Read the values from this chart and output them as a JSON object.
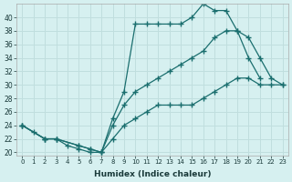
{
  "xlabel": "Humidex (Indice chaleur)",
  "bg_color": "#d6f0f0",
  "grid_color": "#c0dede",
  "line_color": "#1a6e6e",
  "xlim": [
    -0.5,
    23.5
  ],
  "ylim": [
    19.5,
    42
  ],
  "yticks": [
    20,
    22,
    24,
    26,
    28,
    30,
    32,
    34,
    36,
    38,
    40
  ],
  "xticks": [
    0,
    1,
    2,
    3,
    4,
    5,
    6,
    7,
    8,
    9,
    10,
    11,
    12,
    13,
    14,
    15,
    16,
    17,
    18,
    19,
    20,
    21,
    22,
    23
  ],
  "line1_x": [
    0,
    1,
    2,
    3,
    4,
    5,
    6,
    7,
    8,
    9,
    10,
    11,
    12,
    13,
    14,
    15,
    16,
    17,
    18,
    19,
    20,
    21
  ],
  "line1_y": [
    24,
    23,
    22,
    22,
    21,
    20.5,
    20,
    20,
    25,
    29,
    39,
    39,
    39,
    39,
    39,
    40,
    42,
    41,
    41,
    38,
    34,
    31
  ],
  "line2_x": [
    0,
    2,
    3,
    5,
    6,
    7,
    8,
    9,
    10,
    11,
    12,
    13,
    14,
    15,
    16,
    17,
    18,
    19,
    20,
    21,
    22,
    23
  ],
  "line2_y": [
    24,
    22,
    22,
    21,
    20.5,
    20,
    24,
    27,
    29,
    30,
    31,
    32,
    33,
    34,
    35,
    37,
    38,
    38,
    37,
    34,
    31,
    30
  ],
  "line3_x": [
    0,
    2,
    3,
    5,
    6,
    7,
    8,
    9,
    10,
    11,
    12,
    13,
    14,
    15,
    16,
    17,
    18,
    19,
    20,
    21,
    22,
    23
  ],
  "line3_y": [
    24,
    22,
    22,
    21,
    20.5,
    20,
    22,
    24,
    25,
    26,
    27,
    27,
    27,
    27,
    28,
    29,
    30,
    31,
    31,
    30,
    30,
    30
  ]
}
